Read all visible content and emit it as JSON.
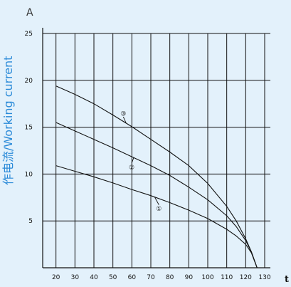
{
  "chart_data": {
    "type": "line",
    "y_unit": "A",
    "x_unit": "t",
    "ylabel": "作电流/Working current",
    "xlim": [
      13,
      133
    ],
    "ylim": [
      0,
      25
    ],
    "x_ticks": [
      20,
      30,
      40,
      50,
      60,
      70,
      80,
      90,
      100,
      110,
      120,
      130
    ],
    "y_ticks": [
      5,
      10,
      15,
      20,
      25
    ],
    "grid": true,
    "series": [
      {
        "name": "①",
        "x": [
          20,
          30,
          40,
          50,
          60,
          70,
          80,
          90,
          100,
          110,
          115,
          120,
          123,
          126
        ],
        "y": [
          10.9,
          10.3,
          9.7,
          9.05,
          8.35,
          7.7,
          6.95,
          6.15,
          5.25,
          4.1,
          3.4,
          2.5,
          1.6,
          0
        ]
      },
      {
        "name": "②",
        "x": [
          20,
          30,
          40,
          50,
          60,
          70,
          80,
          90,
          100,
          110,
          115,
          120,
          123,
          126
        ],
        "y": [
          15.5,
          14.6,
          13.7,
          12.8,
          11.85,
          10.9,
          9.85,
          8.6,
          7.25,
          5.55,
          4.4,
          2.9,
          1.7,
          0
        ]
      },
      {
        "name": "③",
        "x": [
          20,
          30,
          40,
          50,
          60,
          70,
          80,
          90,
          100,
          110,
          115,
          120,
          123,
          126
        ],
        "y": [
          19.4,
          18.5,
          17.5,
          16.3,
          15.05,
          13.7,
          12.35,
          10.9,
          9.0,
          6.55,
          5.0,
          3.1,
          1.7,
          0
        ]
      }
    ]
  }
}
